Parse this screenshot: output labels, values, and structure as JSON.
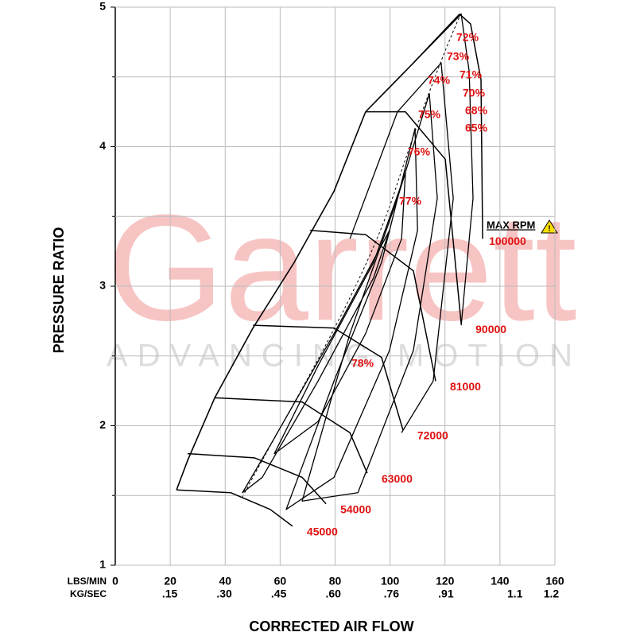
{
  "chart_data": {
    "type": "compressor-map",
    "watermark": {
      "brand": "Garrett",
      "tagline": "ADVANCING MOTION"
    },
    "ylabel": "PRESSURE RATIO",
    "xlabel": "CORRECTED AIR FLOW",
    "x_unit": "LBS/MIN",
    "x2_unit": "KG/SEC",
    "xlim": [
      0,
      160
    ],
    "xticks": [
      0,
      20,
      40,
      60,
      80,
      100,
      120,
      140,
      160
    ],
    "x2lim": [
      0,
      1.21
    ],
    "x2ticks": [
      {
        "value": 0.15,
        "label": ".15"
      },
      {
        "value": 0.3,
        "label": ".30"
      },
      {
        "value": 0.45,
        "label": ".45"
      },
      {
        "value": 0.6,
        "label": ".60"
      },
      {
        "value": 0.76,
        "label": ".76"
      },
      {
        "value": 0.91,
        "label": ".91"
      },
      1.1,
      1.2
    ],
    "ylim": [
      1,
      5
    ],
    "yticks": [
      1,
      2,
      3,
      4,
      5
    ],
    "yminor": [
      1.5,
      2.5,
      3.5,
      4.5
    ],
    "grid": true,
    "max_rpm_label": "MAX RPM",
    "speed_lines": [
      {
        "name": 45000,
        "x": [
          22.3,
          42.0,
          56.4,
          64.5
        ],
        "y": [
          1.54,
          1.52,
          1.4,
          1.28
        ]
      },
      {
        "name": 54000,
        "x": [
          26.3,
          50.6,
          68.0,
          76.7
        ],
        "y": [
          1.8,
          1.77,
          1.63,
          1.44
        ]
      },
      {
        "name": 63000,
        "x": [
          36.2,
          68.0,
          85.4,
          91.7
        ],
        "y": [
          2.2,
          2.17,
          1.95,
          1.66
        ]
      },
      {
        "name": 72000,
        "x": [
          50.1,
          79.6,
          96.9,
          104.7
        ],
        "y": [
          2.72,
          2.7,
          2.49,
          1.97
        ]
      },
      {
        "name": 81000,
        "x": [
          70.9,
          91.1,
          108.5,
          116.6
        ],
        "y": [
          3.4,
          3.37,
          3.11,
          2.32
        ]
      },
      {
        "name": 90000,
        "x": [
          91.1,
          105.6,
          120.1,
          125.9
        ],
        "y": [
          4.25,
          4.25,
          3.91,
          2.73
        ]
      },
      {
        "name": 100000,
        "x": [
          125.3,
          129.3,
          133.1,
          133.7
        ],
        "y": [
          4.95,
          4.88,
          4.48,
          3.34
        ]
      }
    ],
    "surge_line": {
      "x": [
        22.3,
        26.3,
        36.2,
        50.1,
        65.1,
        79.6,
        91.1,
        108.5,
        125.3
      ],
      "y": [
        1.54,
        1.75,
        2.2,
        2.7,
        3.17,
        3.68,
        4.25,
        4.6,
        4.95
      ]
    },
    "islands": [
      {
        "value": 78,
        "label": "78%",
        "closed": true,
        "x": [
          46.3,
          56.4,
          79.6,
          99.8,
          94.0,
          73.8,
          53.5
        ],
        "y": [
          1.52,
          1.86,
          2.66,
          3.4,
          3.06,
          2.32,
          1.63
        ]
      },
      {
        "value": 77,
        "label": "77%",
        "closed": true,
        "x": [
          57.9,
          73.8,
          94.0,
          105.6,
          104.2,
          91.1,
          73.8
        ],
        "y": [
          1.8,
          2.43,
          3.17,
          3.81,
          3.34,
          2.66,
          2.03
        ]
      },
      {
        "value": 76,
        "label": "76%",
        "closed": true,
        "x": [
          62.2,
          79.6,
          96.9,
          109.1,
          110.0,
          99.8,
          79.6
        ],
        "y": [
          1.4,
          2.32,
          3.17,
          4.13,
          3.4,
          2.54,
          1.63
        ]
      },
      {
        "value": 75,
        "label": "75%",
        "closed": true,
        "x": [
          68.0,
          85.4,
          102.7,
          114.3,
          117.2,
          108.5,
          88.3
        ],
        "y": [
          1.46,
          2.66,
          3.63,
          4.38,
          3.63,
          2.54,
          1.52
        ]
      },
      {
        "value": 74,
        "label": "74%",
        "closed": false,
        "x": [
          85.4,
          102.7,
          118.6,
          123.0,
          115.7,
          104.2
        ],
        "y": [
          3.34,
          4.25,
          4.6,
          3.63,
          2.32,
          1.95
        ]
      },
      {
        "value": 73,
        "label": "73%",
        "closed": false,
        "x": [
          108.5,
          125.9,
          128.8,
          130.2,
          125.9
        ],
        "y": [
          4.6,
          4.95,
          4.54,
          3.63,
          2.72
        ]
      },
      {
        "value": 72,
        "label": "72%"
      },
      {
        "value": 71,
        "label": "71%"
      },
      {
        "value": 70,
        "label": "70%"
      },
      {
        "value": 68,
        "label": "68%"
      },
      {
        "value": 65,
        "label": "65%"
      }
    ]
  }
}
